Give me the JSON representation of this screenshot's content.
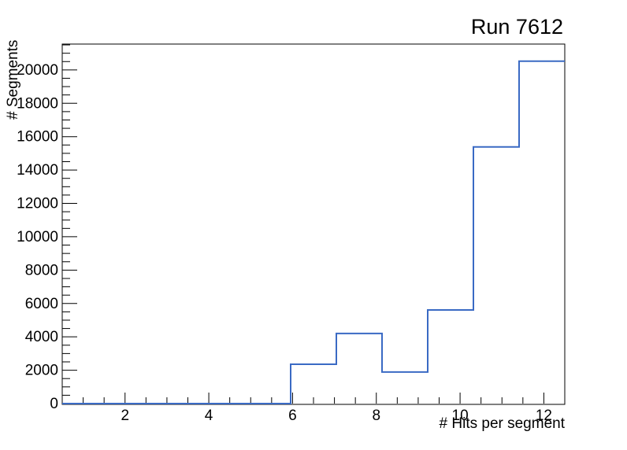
{
  "title": "Run 7612",
  "chart_data": {
    "type": "histogram",
    "title": "Run 7612",
    "xlabel": "# Hits per segment",
    "ylabel": "# Segments",
    "xlim": [
      0.5,
      12.5
    ],
    "ylim": [
      0,
      21550
    ],
    "x_major_ticks": [
      2,
      4,
      6,
      8,
      10,
      12
    ],
    "x_minor_tick_step": 0.5,
    "y_major_ticks": [
      0,
      2000,
      4000,
      6000,
      8000,
      10000,
      12000,
      14000,
      16000,
      18000,
      20000
    ],
    "y_minor_tick_step": 500,
    "grid": false,
    "legend": false,
    "background": "#ffffff",
    "frame_color": "#000000",
    "line_color": "#3a6ac4",
    "line_width": 2,
    "bin_edges": [
      0.5,
      1.5909,
      2.6818,
      3.7727,
      4.8636,
      5.9545,
      7.0455,
      8.1364,
      9.2273,
      10.3182,
      11.4091,
      12.5
    ],
    "counts": [
      0,
      0,
      0,
      0,
      0,
      2360,
      4200,
      1890,
      5610,
      15380,
      20520
    ]
  }
}
